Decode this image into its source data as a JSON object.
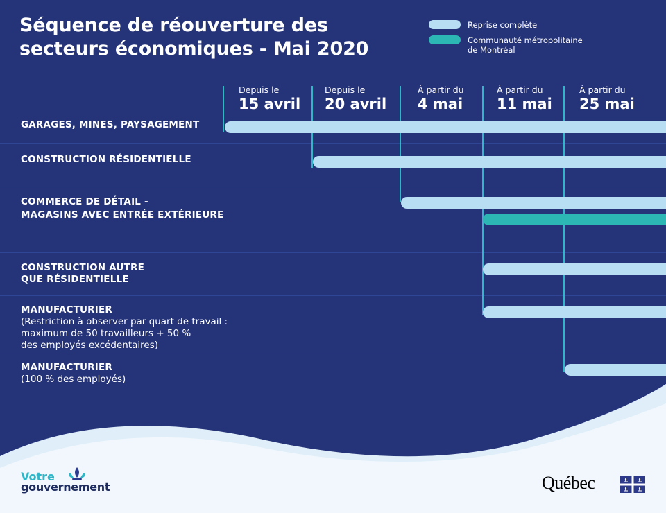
{
  "title": {
    "line1": "Séquence de réouverture des",
    "line2": "secteurs économiques - Mai 2020"
  },
  "legend": [
    {
      "label": "Reprise complète",
      "color": "#b7def3"
    },
    {
      "label": "Communauté métropolitaine de Montréal",
      "color": "#2cb7b5"
    }
  ],
  "legend_line2": "de Montréal",
  "legend_line1": "Communauté métropolitaine",
  "columns": [
    {
      "small": "Depuis le",
      "big": "15 avril"
    },
    {
      "small": "Depuis le",
      "big": "20 avril"
    },
    {
      "small": "À partir du",
      "big": "4 mai"
    },
    {
      "small": "À partir du",
      "big": "11 mai"
    },
    {
      "small": "À partir du",
      "big": "25 mai"
    }
  ],
  "rows": [
    {
      "title": "GARAGES, MINES, PAYSAGEMENT",
      "bars": [
        {
          "start": "15 avril",
          "type": "Reprise complète"
        }
      ]
    },
    {
      "title": "CONSTRUCTION RÉSIDENTIELLE",
      "bars": [
        {
          "start": "20 avril",
          "type": "Reprise complète"
        }
      ]
    },
    {
      "title": "COMMERCE DE DÉTAIL -",
      "title2": "MAGASINS AVEC ENTRÉE EXTÉRIEURE",
      "bars": [
        {
          "start": "4 mai",
          "type": "Reprise complète"
        },
        {
          "start": "11 mai",
          "type": "Communauté métropolitaine de Montréal"
        }
      ]
    },
    {
      "title": "CONSTRUCTION AUTRE",
      "title2": "QUE RÉSIDENTIELLE",
      "bars": [
        {
          "start": "11 mai",
          "type": "Reprise complète"
        }
      ]
    },
    {
      "title": "MANUFACTURIER",
      "note1": "(Restriction à observer par quart de travail :",
      "note2": "maximum de 50 travailleurs + 50 %",
      "note3": "des employés excédentaires)",
      "bars": [
        {
          "start": "11 mai",
          "type": "Reprise complète"
        }
      ]
    },
    {
      "title": "MANUFACTURIER",
      "note1": "(100 % des employés)",
      "bars": [
        {
          "start": "25 mai",
          "type": "Reprise complète"
        }
      ]
    }
  ],
  "branding": {
    "votre": "Votre",
    "gouvernement": "gouvernement",
    "quebec": "Québec",
    "fleur_icon": "fleur-de-lis-icon",
    "flag_icon": "quebec-flag-icon"
  },
  "colors": {
    "background": "#253378",
    "light_bar": "#b7def3",
    "teal_bar": "#2cb7b5",
    "column_line": "#2eb6c9",
    "wave_blue": "#dfeef9",
    "white_area": "#f1f7fc",
    "logo_blue": "#2d3a8c"
  }
}
